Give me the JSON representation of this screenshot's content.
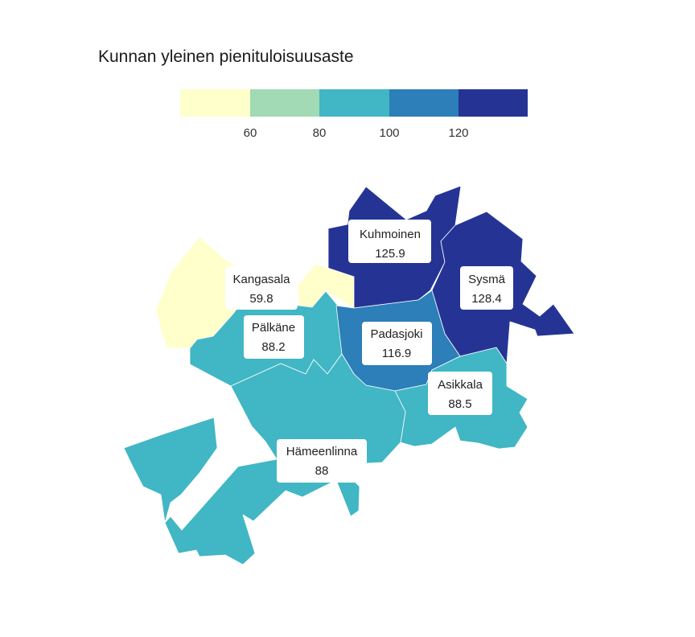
{
  "legend": {
    "title": "Kunnan yleinen pienituloisuusaste",
    "breaks": [
      60,
      80,
      100,
      120
    ],
    "tick_labels": [
      "60",
      "80",
      "100",
      "120"
    ],
    "colors": [
      "#ffffcc",
      "#a1dab4",
      "#41b6c4",
      "#2c7fb8",
      "#253494"
    ]
  },
  "chart_data": {
    "type": "choropleth",
    "title": "Kunnan yleinen pienituloisuusaste",
    "color_scale": {
      "breaks": [
        60,
        80,
        100,
        120
      ],
      "colors": [
        "#ffffcc",
        "#a1dab4",
        "#41b6c4",
        "#2c7fb8",
        "#253494"
      ]
    },
    "regions": [
      {
        "name": "Kuhmoinen",
        "value": 125.9,
        "value_label": "125.9"
      },
      {
        "name": "Sysmä",
        "value": 128.4,
        "value_label": "128.4"
      },
      {
        "name": "Kangasala",
        "value": 59.8,
        "value_label": "59.8"
      },
      {
        "name": "Pälkäne",
        "value": 88.2,
        "value_label": "88.2"
      },
      {
        "name": "Padasjoki",
        "value": 116.9,
        "value_label": "116.9"
      },
      {
        "name": "Asikkala",
        "value": 88.5,
        "value_label": "88.5"
      },
      {
        "name": "Hämeenlinna",
        "value": 88,
        "value_label": "88"
      }
    ]
  }
}
